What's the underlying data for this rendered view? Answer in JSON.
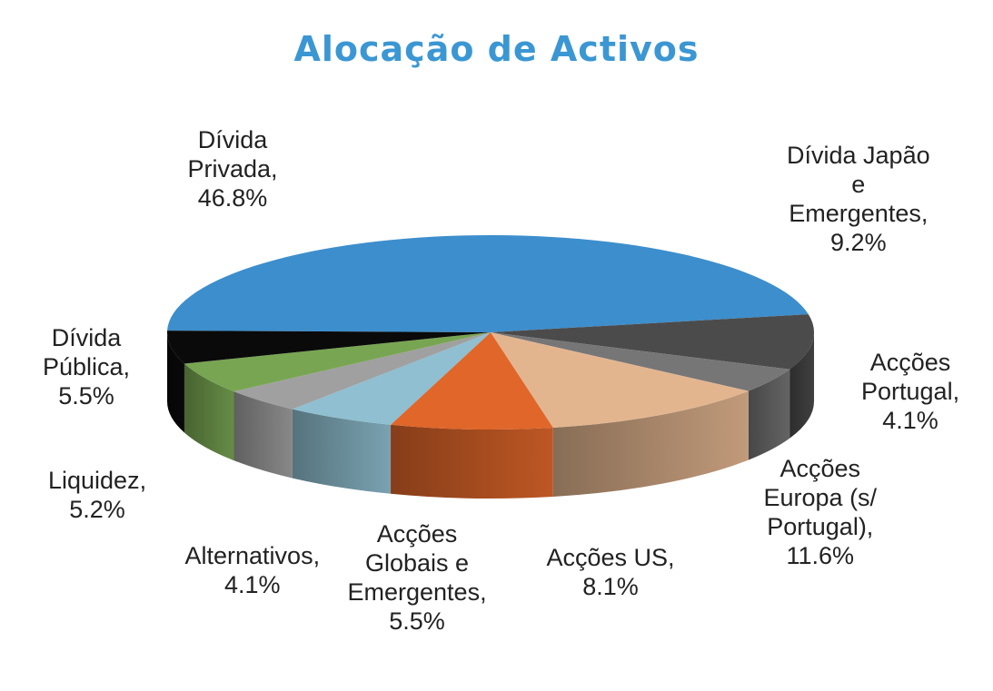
{
  "chart_data": {
    "type": "pie",
    "style": "3d-exploded",
    "title": "Alocação de Activos",
    "legend": "none",
    "slices": [
      {
        "name": "Dívida Privada",
        "value": 46.8,
        "label": "Dívida\nPrivada,\n46.8%",
        "color": "#3d8ecc"
      },
      {
        "name": "Dívida Japão e Emergentes",
        "value": 9.2,
        "label": "Dívida Japão\ne\nEmergentes,\n9.2%",
        "color": "#4b4b4b"
      },
      {
        "name": "Acções Portugal",
        "value": 4.1,
        "label": "Acções\nPortugal,\n4.1%",
        "color": "#767676"
      },
      {
        "name": "Acções Europa (s/ Portugal)",
        "value": 11.6,
        "label": "Acções\nEuropa (s/\nPortugal),\n11.6%",
        "color": "#e3b58f"
      },
      {
        "name": "Acções US",
        "value": 8.1,
        "label": "Acções US,\n8.1%",
        "color": "#e0662a"
      },
      {
        "name": "Acções Globais e Emergentes",
        "value": 5.5,
        "label": "Acções\nGlobais e\nEmergentes,\n5.5%",
        "color": "#8fbfd0"
      },
      {
        "name": "Alternativos",
        "value": 4.1,
        "label": "Alternativos,\n4.1%",
        "color": "#a0a0a0"
      },
      {
        "name": "Liquidez",
        "value": 5.2,
        "label": "Liquidez,\n5.2%",
        "color": "#78a552"
      },
      {
        "name": "Dívida Pública",
        "value": 5.5,
        "label": "Dívida\nPública,\n5.5%",
        "color": "#0a0a0a"
      }
    ]
  }
}
